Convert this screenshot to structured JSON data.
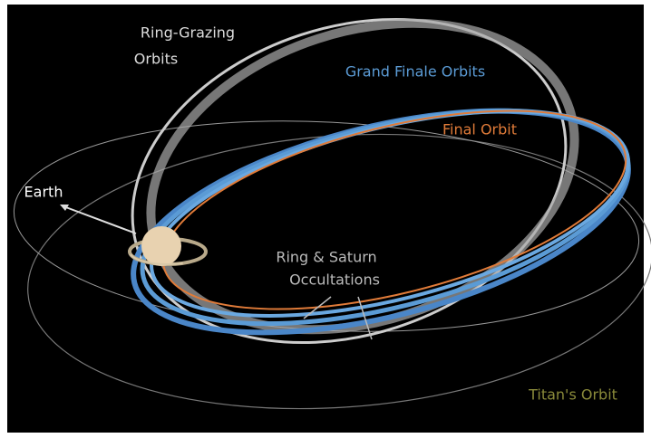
{
  "labels": {
    "ring_grazing": [
      "Ring-Grazing",
      "Orbits"
    ],
    "grand_finale": "Grand Finale Orbits",
    "final_orbit": "Final Orbit",
    "earth": "Earth",
    "occultations": [
      "Ring & Saturn",
      "Occultations"
    ],
    "titan": "Titan's Orbit"
  }
}
